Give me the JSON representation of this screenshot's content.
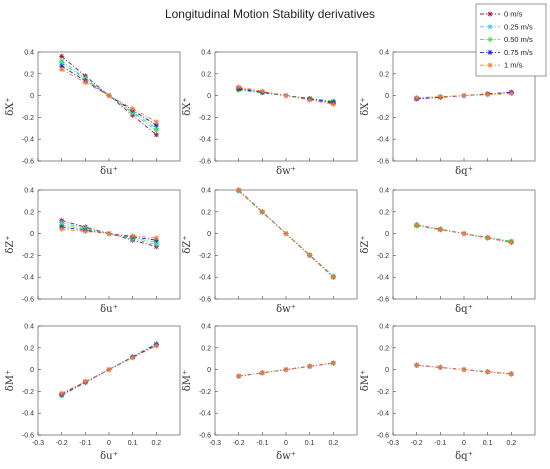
{
  "title": "Longitudinal Motion Stability derivatives",
  "legend": {
    "placement": "top-right",
    "entries": [
      {
        "name": "0 m/s",
        "color": "#a2142f"
      },
      {
        "name": "0.25 m/s",
        "color": "#4dbeee"
      },
      {
        "name": "0.50 m/s",
        "color": "#33ee33"
      },
      {
        "name": "0.75 m/s",
        "color": "#1f1fd0"
      },
      {
        "name": "1 m/s",
        "color": "#ff7a33"
      }
    ]
  },
  "chart_data": [
    {
      "type": "line",
      "xlabel": "δu⁺",
      "ylabel": "δX⁺",
      "xlim": [
        -0.3,
        0.3
      ],
      "ylim": [
        -0.6,
        0.4
      ],
      "x": [
        -0.2,
        -0.1,
        0,
        0.1,
        0.2
      ],
      "series": [
        {
          "name": "0 m/s",
          "values": [
            0.36,
            0.18,
            0,
            -0.18,
            -0.36
          ]
        },
        {
          "name": "0.25 m/s",
          "values": [
            0.32,
            0.16,
            0,
            -0.16,
            -0.32
          ]
        },
        {
          "name": "0.50 m/s",
          "values": [
            0.3,
            0.15,
            0,
            -0.15,
            -0.3
          ]
        },
        {
          "name": "0.75 m/s",
          "values": [
            0.27,
            0.135,
            0,
            -0.135,
            -0.27
          ]
        },
        {
          "name": "1 m/s",
          "values": [
            0.24,
            0.12,
            0,
            -0.12,
            -0.24
          ]
        }
      ]
    },
    {
      "type": "line",
      "xlabel": "δw⁺",
      "ylabel": "δX⁺",
      "xlim": [
        -0.3,
        0.3
      ],
      "ylim": [
        -0.6,
        0.4
      ],
      "x": [
        -0.2,
        -0.1,
        0,
        0.1,
        0.2
      ],
      "series": [
        {
          "name": "0 m/s",
          "values": [
            0.07,
            0.03,
            0,
            -0.03,
            -0.07
          ]
        },
        {
          "name": "0.25 m/s",
          "values": [
            0.06,
            0.03,
            0,
            -0.03,
            -0.06
          ]
        },
        {
          "name": "0.50 m/s",
          "values": [
            0.05,
            0.025,
            0,
            -0.025,
            -0.05
          ]
        },
        {
          "name": "0.75 m/s",
          "values": [
            0.06,
            0.03,
            0,
            -0.03,
            -0.06
          ]
        },
        {
          "name": "1 m/s",
          "values": [
            0.08,
            0.04,
            0,
            -0.04,
            -0.08
          ]
        }
      ]
    },
    {
      "type": "line",
      "xlabel": "δq⁺",
      "ylabel": "δX⁺",
      "xlim": [
        -0.3,
        0.3
      ],
      "ylim": [
        -0.6,
        0.4
      ],
      "x": [
        -0.2,
        -0.1,
        0,
        0.1,
        0.2
      ],
      "series": [
        {
          "name": "0 m/s",
          "values": [
            -0.03,
            -0.015,
            0,
            0.015,
            0.03
          ]
        },
        {
          "name": "0.25 m/s",
          "values": [
            -0.025,
            -0.012,
            0,
            0.012,
            0.025
          ]
        },
        {
          "name": "0.50 m/s",
          "values": [
            -0.02,
            -0.01,
            0,
            0.01,
            0.02
          ]
        },
        {
          "name": "0.75 m/s",
          "values": [
            -0.03,
            -0.015,
            0,
            0.015,
            0.03
          ]
        },
        {
          "name": "1 m/s",
          "values": [
            -0.02,
            -0.01,
            0,
            0.01,
            0.02
          ]
        }
      ]
    },
    {
      "type": "line",
      "xlabel": "δu⁺",
      "ylabel": "δZ⁺",
      "xlim": [
        -0.3,
        0.3
      ],
      "ylim": [
        -0.6,
        0.4
      ],
      "x": [
        -0.2,
        -0.1,
        0,
        0.1,
        0.2
      ],
      "series": [
        {
          "name": "0 m/s",
          "values": [
            0.12,
            0.06,
            0,
            -0.06,
            -0.12
          ]
        },
        {
          "name": "0.25 m/s",
          "values": [
            0.1,
            0.05,
            0,
            -0.05,
            -0.1
          ]
        },
        {
          "name": "0.50 m/s",
          "values": [
            0.08,
            0.04,
            0,
            -0.04,
            -0.08
          ]
        },
        {
          "name": "0.75 m/s",
          "values": [
            0.06,
            0.03,
            0,
            -0.03,
            -0.06
          ]
        },
        {
          "name": "1 m/s",
          "values": [
            0.04,
            0.02,
            0,
            -0.02,
            -0.04
          ]
        }
      ]
    },
    {
      "type": "line",
      "xlabel": "δw⁺",
      "ylabel": "δZ⁺",
      "xlim": [
        -0.3,
        0.3
      ],
      "ylim": [
        -0.6,
        0.4
      ],
      "x": [
        -0.2,
        -0.1,
        0,
        0.1,
        0.2
      ],
      "series": [
        {
          "name": "0 m/s",
          "values": [
            0.4,
            0.2,
            0,
            -0.2,
            -0.4
          ]
        },
        {
          "name": "0.25 m/s",
          "values": [
            0.39,
            0.195,
            0,
            -0.195,
            -0.39
          ]
        },
        {
          "name": "0.50 m/s",
          "values": [
            0.39,
            0.195,
            0,
            -0.195,
            -0.39
          ]
        },
        {
          "name": "0.75 m/s",
          "values": [
            0.4,
            0.2,
            0,
            -0.2,
            -0.4
          ]
        },
        {
          "name": "1 m/s",
          "values": [
            0.4,
            0.2,
            0,
            -0.2,
            -0.4
          ]
        }
      ]
    },
    {
      "type": "line",
      "xlabel": "δq⁺",
      "ylabel": "δZ⁺",
      "xlim": [
        -0.3,
        0.3
      ],
      "ylim": [
        -0.6,
        0.4
      ],
      "x": [
        -0.2,
        -0.1,
        0,
        0.1,
        0.2
      ],
      "series": [
        {
          "name": "0 m/s",
          "values": [
            0.08,
            0.04,
            0,
            -0.04,
            -0.08
          ]
        },
        {
          "name": "0.25 m/s",
          "values": [
            0.07,
            0.035,
            0,
            -0.035,
            -0.07
          ]
        },
        {
          "name": "0.50 m/s",
          "values": [
            0.07,
            0.035,
            0,
            -0.035,
            -0.07
          ]
        },
        {
          "name": "0.75 m/s",
          "values": [
            0.08,
            0.04,
            0,
            -0.04,
            -0.08
          ]
        },
        {
          "name": "1 m/s",
          "values": [
            0.08,
            0.04,
            0,
            -0.04,
            -0.08
          ]
        }
      ]
    },
    {
      "type": "line",
      "xlabel": "δu⁺",
      "ylabel": "δM⁺",
      "xlim": [
        -0.3,
        0.3
      ],
      "ylim": [
        -0.6,
        0.4
      ],
      "x": [
        -0.2,
        -0.1,
        0,
        0.1,
        0.2
      ],
      "series": [
        {
          "name": "0 m/s",
          "values": [
            -0.22,
            -0.11,
            0,
            0.11,
            0.22
          ]
        },
        {
          "name": "0.25 m/s",
          "values": [
            -0.24,
            -0.12,
            0,
            0.12,
            0.24
          ]
        },
        {
          "name": "0.50 m/s",
          "values": [
            -0.23,
            -0.115,
            0,
            0.115,
            0.23
          ]
        },
        {
          "name": "0.75 m/s",
          "values": [
            -0.23,
            -0.115,
            0,
            0.115,
            0.23
          ]
        },
        {
          "name": "1 m/s",
          "values": [
            -0.22,
            -0.11,
            0,
            0.11,
            0.22
          ]
        }
      ]
    },
    {
      "type": "line",
      "xlabel": "δw⁺",
      "ylabel": "δM⁺",
      "xlim": [
        -0.3,
        0.3
      ],
      "ylim": [
        -0.6,
        0.4
      ],
      "x": [
        -0.2,
        -0.1,
        0,
        0.1,
        0.2
      ],
      "series": [
        {
          "name": "0 m/s",
          "values": [
            -0.06,
            -0.03,
            0,
            0.03,
            0.06
          ]
        },
        {
          "name": "0.25 m/s",
          "values": [
            -0.06,
            -0.03,
            0,
            0.03,
            0.06
          ]
        },
        {
          "name": "0.50 m/s",
          "values": [
            -0.06,
            -0.03,
            0,
            0.03,
            0.06
          ]
        },
        {
          "name": "0.75 m/s",
          "values": [
            -0.06,
            -0.03,
            0,
            0.03,
            0.06
          ]
        },
        {
          "name": "1 m/s",
          "values": [
            -0.06,
            -0.03,
            0,
            0.03,
            0.06
          ]
        }
      ]
    },
    {
      "type": "line",
      "xlabel": "δq⁺",
      "ylabel": "δM⁺",
      "xlim": [
        -0.3,
        0.3
      ],
      "ylim": [
        -0.6,
        0.4
      ],
      "x": [
        -0.2,
        -0.1,
        0,
        0.1,
        0.2
      ],
      "series": [
        {
          "name": "0 m/s",
          "values": [
            0.04,
            0.02,
            0,
            -0.02,
            -0.04
          ]
        },
        {
          "name": "0.25 m/s",
          "values": [
            0.04,
            0.02,
            0,
            -0.02,
            -0.04
          ]
        },
        {
          "name": "0.50 m/s",
          "values": [
            0.04,
            0.02,
            0,
            -0.02,
            -0.04
          ]
        },
        {
          "name": "0.75 m/s",
          "values": [
            0.04,
            0.02,
            0,
            -0.02,
            -0.04
          ]
        },
        {
          "name": "1 m/s",
          "values": [
            0.04,
            0.02,
            0,
            -0.02,
            -0.04
          ]
        }
      ]
    }
  ],
  "axes": {
    "xticks": [
      "-0.3",
      "-0.2",
      "-0.1",
      "0",
      "0.1",
      "0.2"
    ],
    "yticks": [
      "-0.6",
      "-0.4",
      "-0.2",
      "0",
      "0.2",
      "0.4"
    ],
    "xtick_values": [
      -0.3,
      -0.2,
      -0.1,
      0,
      0.1,
      0.2
    ],
    "ytick_values": [
      -0.6,
      -0.4,
      -0.2,
      0,
      0.2,
      0.4
    ]
  }
}
